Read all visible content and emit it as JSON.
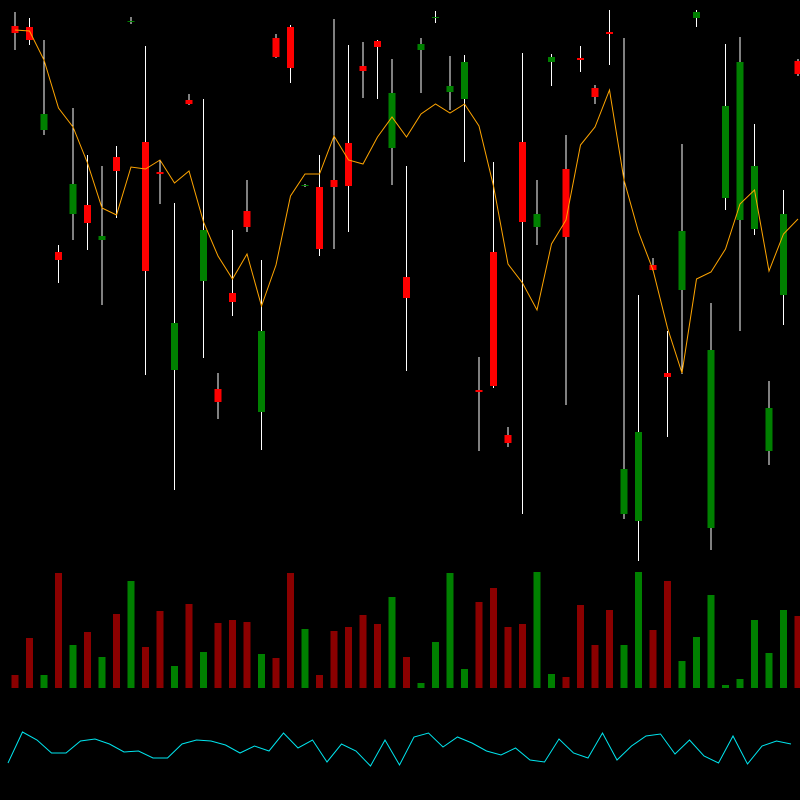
{
  "chart_data": {
    "type": "candlestick",
    "up_color": "#008000",
    "down_color": "#ff0000",
    "wick_color": "#ffffff",
    "ylim": [
      0,
      800
    ],
    "open": [
      774,
      773,
      670,
      548,
      586,
      595,
      560,
      643,
      778,
      658,
      628,
      430,
      700,
      519,
      411,
      507,
      589,
      388,
      762,
      773,
      614,
      613,
      620,
      657,
      734,
      759,
      652,
      523,
      750,
      782,
      708,
      701,
      410,
      548,
      365,
      658,
      573,
      738,
      631,
      742,
      712,
      768,
      286,
      279,
      535,
      427,
      510,
      782,
      272,
      602,
      580,
      571,
      349,
      505,
      739
    ],
    "high": [
      788,
      782,
      760,
      555,
      692,
      645,
      634,
      654,
      783,
      754,
      640,
      597,
      706,
      701,
      427,
      570,
      620,
      540,
      766,
      775,
      616,
      645,
      781,
      755,
      758,
      760,
      741,
      634,
      762,
      789,
      744,
      745,
      443,
      638,
      373,
      747,
      620,
      746,
      665,
      754,
      715,
      790,
      762,
      505,
      542,
      469,
      656,
      790,
      497,
      756,
      763,
      676,
      419,
      610,
      741
    ],
    "low": [
      750,
      755,
      665,
      517,
      560,
      550,
      495,
      582,
      776,
      425,
      596,
      310,
      695,
      442,
      381,
      484,
      568,
      350,
      742,
      717,
      613,
      544,
      551,
      568,
      702,
      701,
      615,
      429,
      707,
      777,
      690,
      638,
      349,
      412,
      353,
      286,
      555,
      714,
      395,
      728,
      696,
      735,
      281,
      239,
      529,
      363,
      426,
      773,
      250,
      590,
      469,
      565,
      335,
      475,
      724
    ],
    "close": [
      767,
      760,
      686,
      540,
      616,
      577,
      564,
      629,
      779,
      529,
      626,
      477,
      696,
      570,
      398,
      498,
      573,
      469,
      743,
      732,
      615,
      551,
      613,
      614,
      729,
      753,
      707,
      502,
      756,
      783,
      714,
      738,
      408,
      414,
      357,
      578,
      586,
      743,
      563,
      740,
      703,
      766,
      331,
      368,
      530,
      423,
      569,
      788,
      450,
      694,
      738,
      634,
      392,
      586,
      726
    ],
    "ma": {
      "color": "#ffa500",
      "values": [
        770,
        769,
        740,
        692,
        673,
        637,
        592,
        585,
        633,
        631,
        640,
        617,
        629,
        578,
        544,
        521,
        546,
        494,
        535,
        604,
        626,
        626,
        664,
        640,
        636,
        663,
        683,
        663,
        686,
        696,
        687,
        696,
        674,
        614,
        536,
        517,
        490,
        556,
        580,
        655,
        673,
        710,
        620,
        568,
        530,
        472,
        427,
        521,
        528,
        551,
        596,
        610,
        529,
        566,
        581
      ]
    },
    "volume": {
      "up_color": "#008000",
      "down_color": "#8b0000",
      "ylim": [
        0,
        120
      ],
      "values": [
        13,
        50,
        13,
        115,
        43,
        56,
        31,
        74,
        107,
        41,
        77,
        22,
        84,
        36,
        65,
        68,
        66,
        34,
        30,
        115,
        59,
        13,
        57,
        61,
        73,
        64,
        91,
        31,
        5,
        46,
        115,
        19,
        86,
        100,
        61,
        64,
        116,
        14,
        11,
        83,
        43,
        78,
        43,
        116,
        58,
        107,
        27,
        51,
        93,
        3,
        9,
        68,
        35,
        78,
        72
      ]
    },
    "indicator": {
      "color": "#00e5ee",
      "ylim": [
        0,
        100
      ],
      "values": [
        37,
        68,
        60,
        47,
        47,
        59,
        61,
        56,
        48,
        49,
        42,
        42,
        56,
        60,
        59,
        55,
        47,
        54,
        49,
        67,
        52,
        60,
        38,
        56,
        49,
        34,
        60,
        35,
        63,
        67,
        53,
        63,
        57,
        49,
        45,
        52,
        40,
        38,
        61,
        47,
        42,
        67,
        40,
        54,
        64,
        66,
        46,
        60,
        44,
        37,
        64,
        36,
        54,
        59,
        56
      ]
    }
  }
}
